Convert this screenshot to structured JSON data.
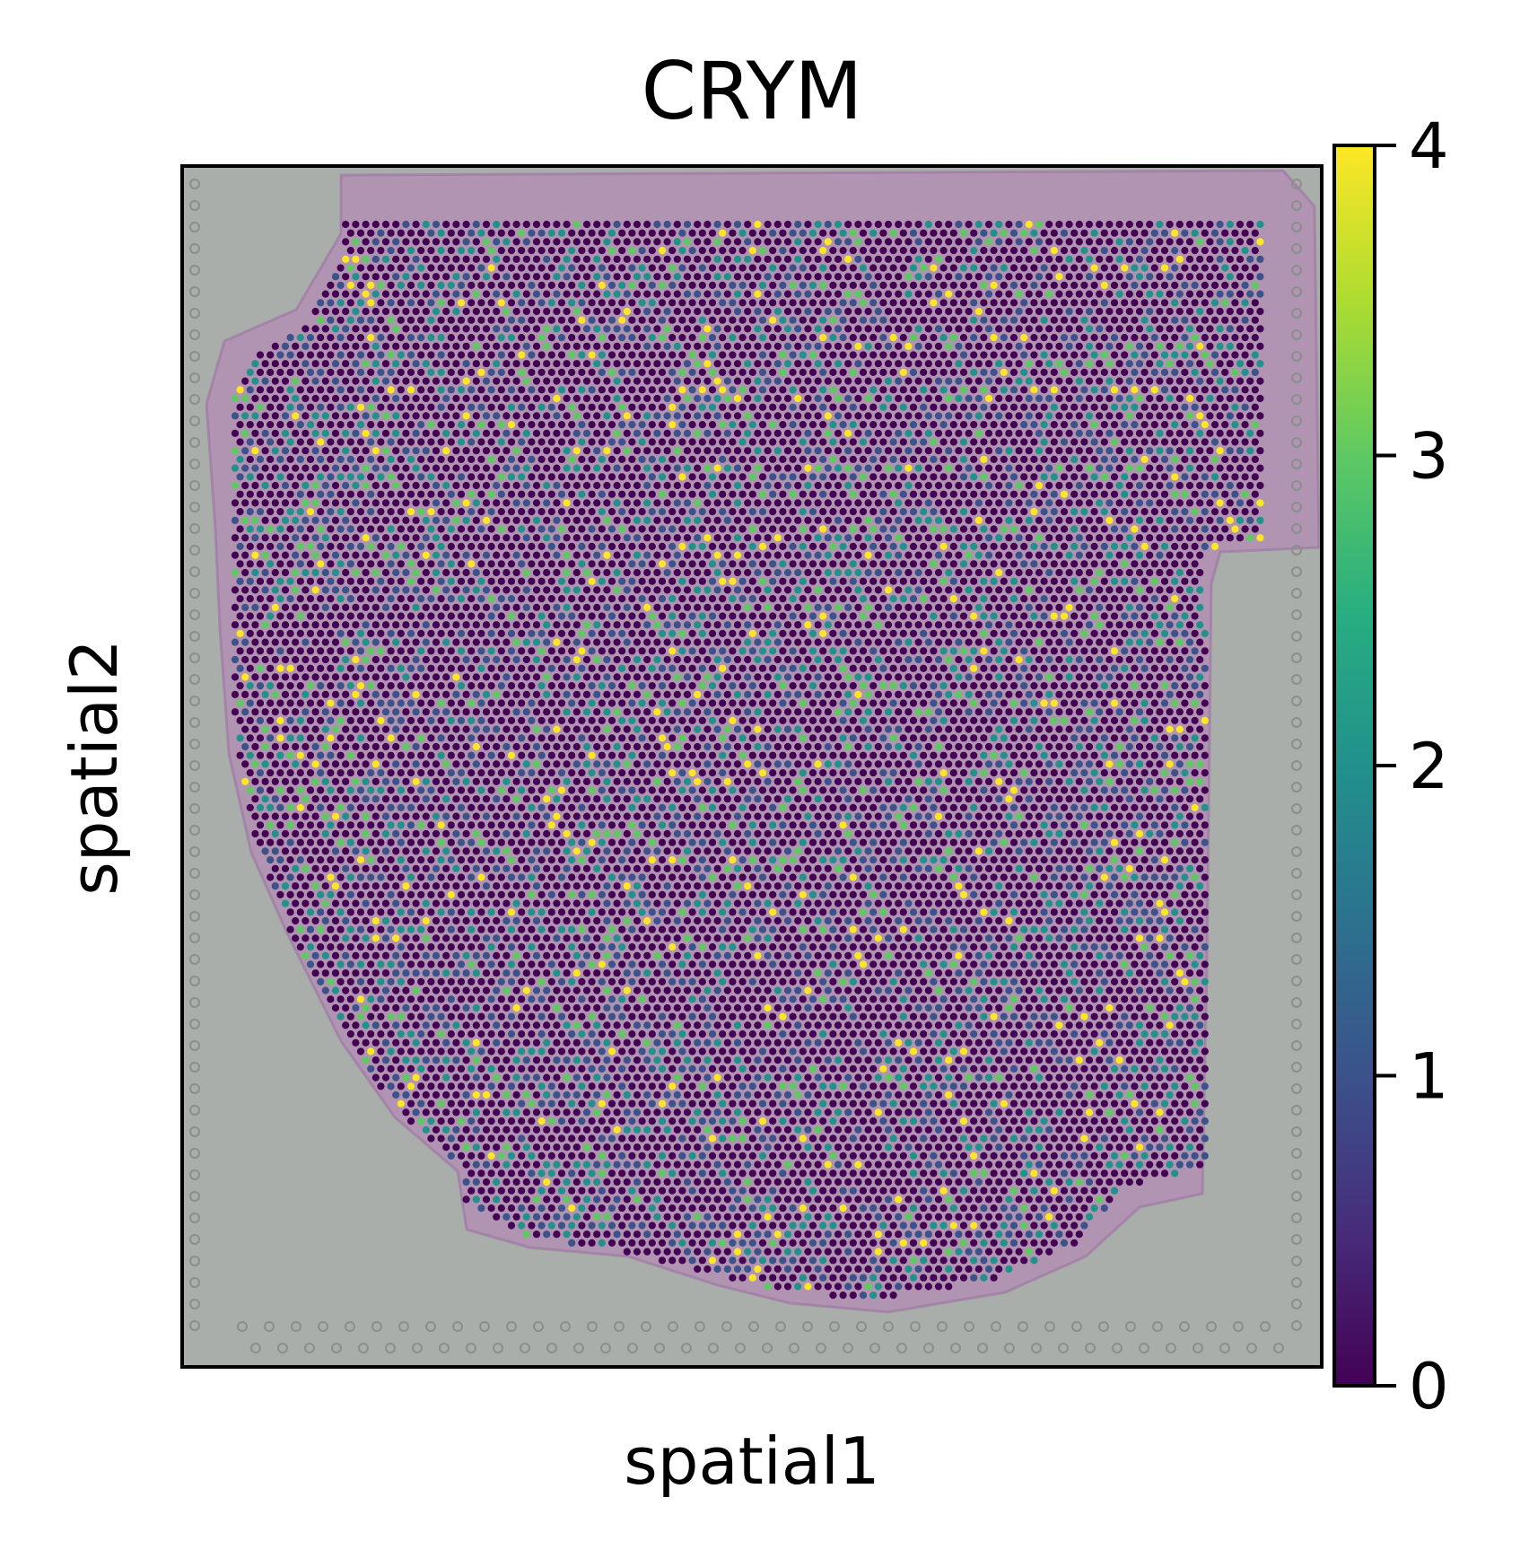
{
  "chart_data": {
    "type": "scatter",
    "subtype": "spatial-transcriptomics",
    "title": "CRYM",
    "xlabel": "spatial1",
    "ylabel": "spatial2",
    "x_ticks": [],
    "y_ticks": [],
    "grid": false,
    "background": "H&E tissue image (greyscale slide with pink/purple stained tissue), overlaid with a hexagonal array of spots",
    "colorbar": {
      "colormap": "viridis",
      "min": 0,
      "max": 4,
      "ticks": [
        0,
        1,
        2,
        3,
        4
      ],
      "tick_labels": [
        "0",
        "1",
        "2",
        "3",
        "4"
      ],
      "placement": "right"
    },
    "value_distribution": {
      "note": "Most spots have expression 0; minority spots at 1-4 are scattered across the tissue",
      "fractions": [
        {
          "value": 0,
          "fraction": 0.64
        },
        {
          "value": 1,
          "fraction": 0.17
        },
        {
          "value": 2,
          "fraction": 0.11
        },
        {
          "value": 3,
          "fraction": 0.05
        },
        {
          "value": 4,
          "fraction": 0.03
        }
      ]
    }
  },
  "colors": {
    "viridis": [
      "#440154",
      "#3b528b",
      "#21918c",
      "#5ec962",
      "#fde725"
    ],
    "slide_background": "#a9aeab",
    "tissue_stain": "#b48ab4",
    "fiducial_ring": "#8a8f8e"
  }
}
